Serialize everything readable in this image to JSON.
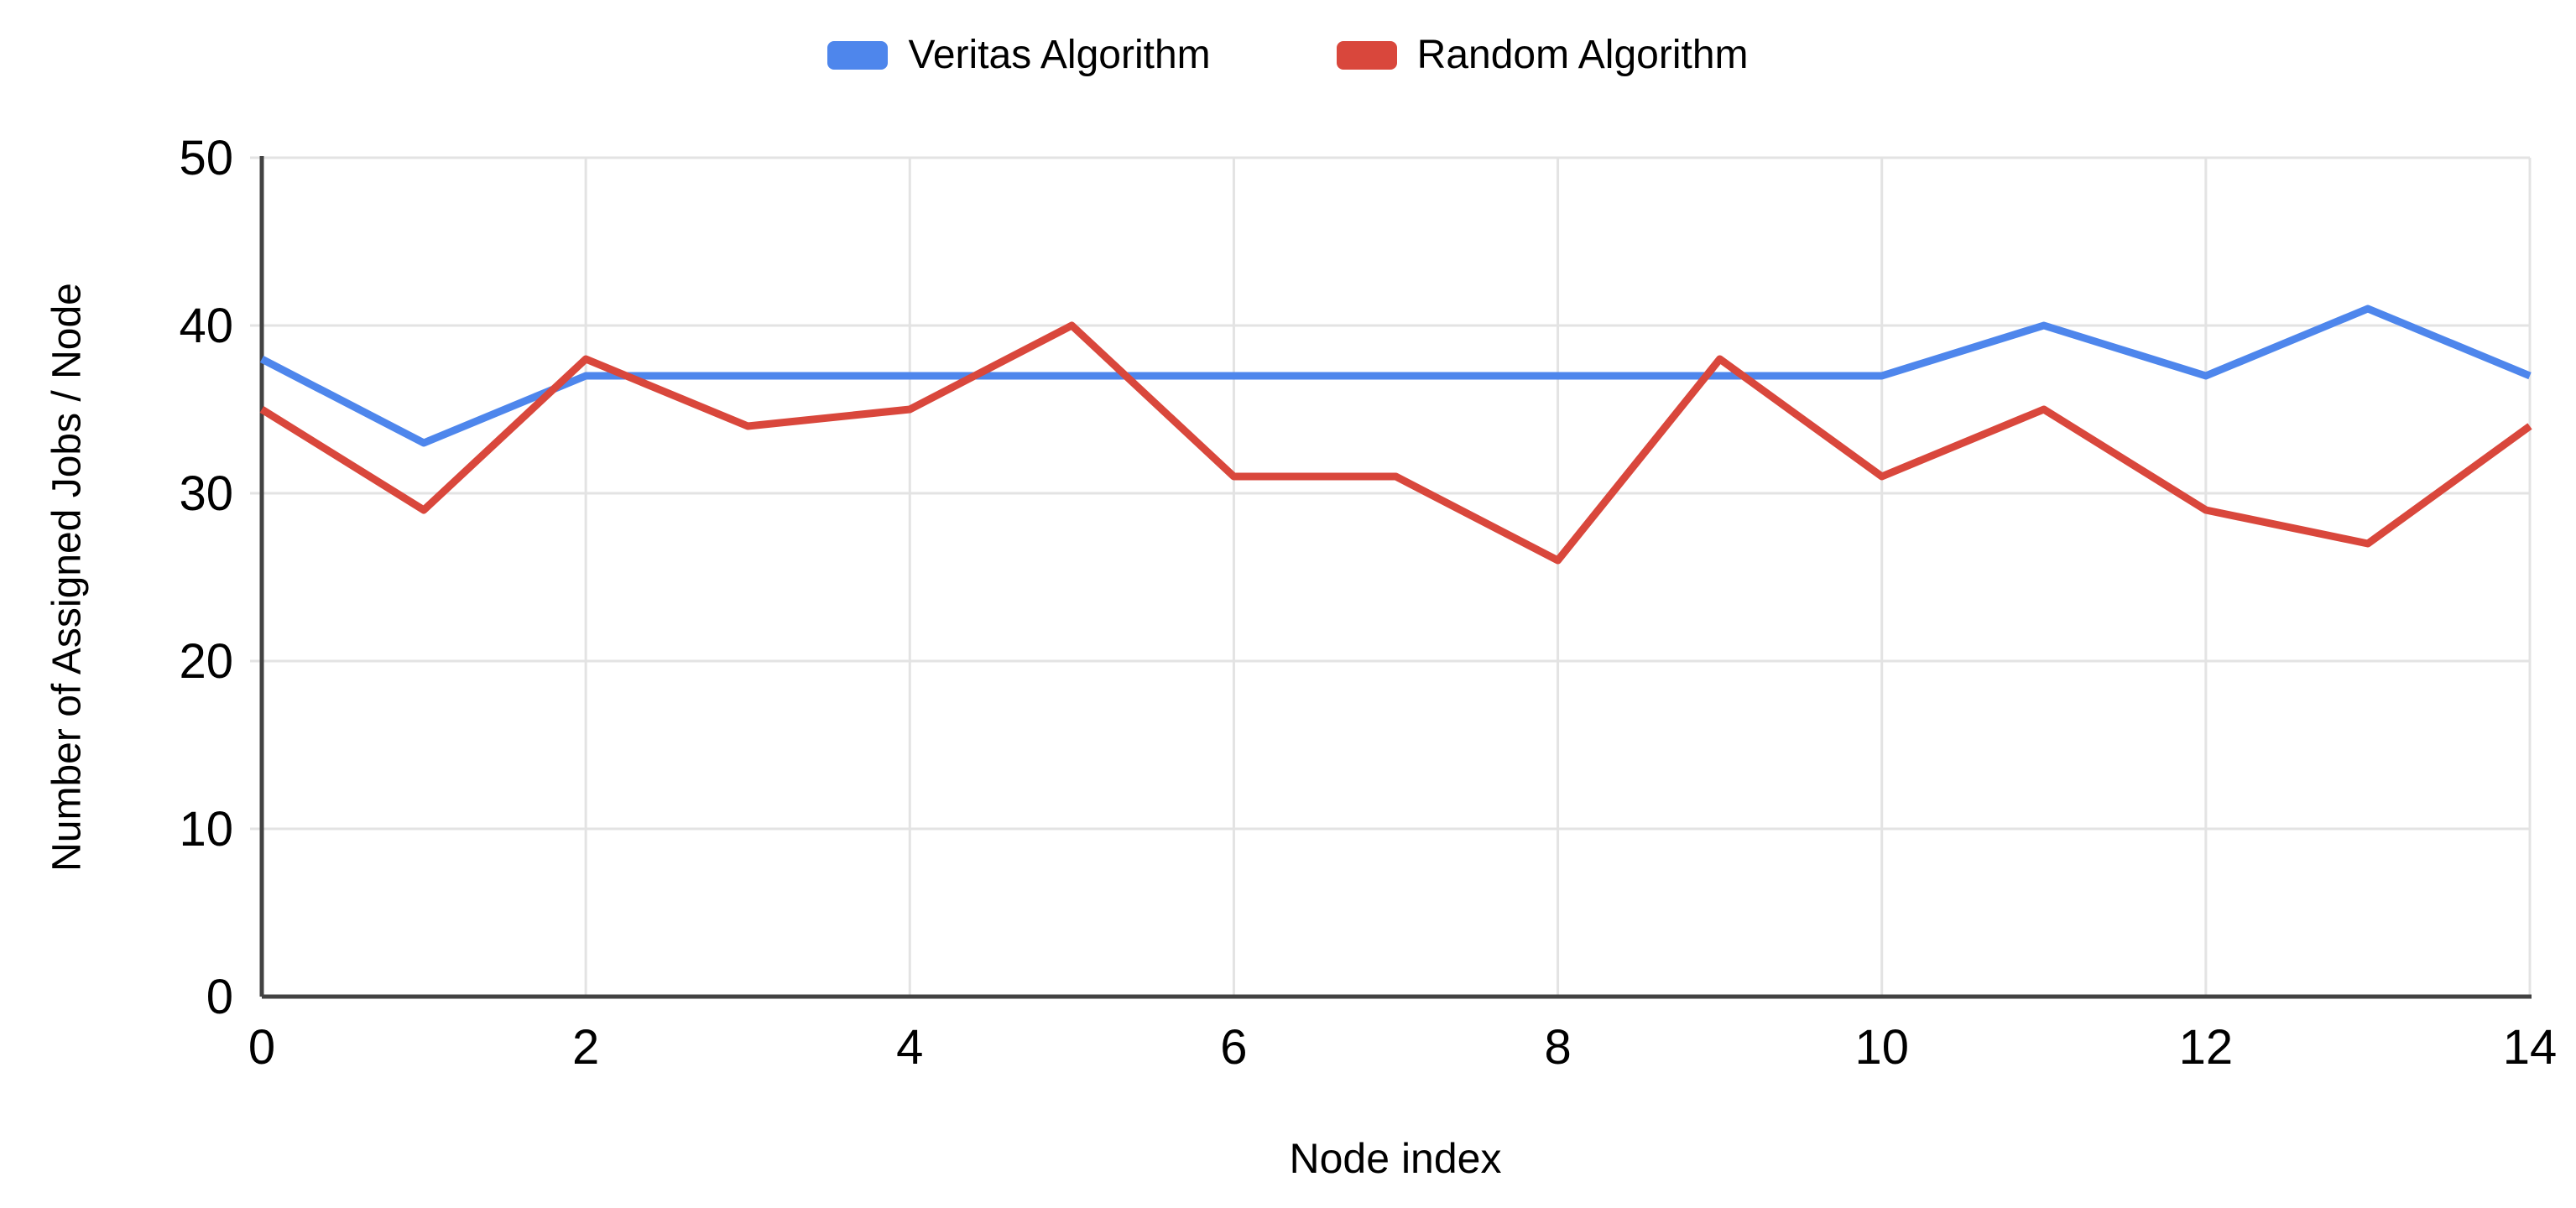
{
  "page": {
    "background": "#FFFFFF"
  },
  "colors": {
    "gridline": "#E3E3E3",
    "axis": "#424242",
    "text": "#000000"
  },
  "chart_data": {
    "type": "line",
    "title": "",
    "xlabel": "Node index",
    "ylabel": "Number of Assigned Jobs / Node",
    "x": [
      0,
      1,
      2,
      3,
      4,
      5,
      6,
      7,
      8,
      9,
      10,
      11,
      12,
      13,
      14
    ],
    "x_ticks": [
      0,
      2,
      4,
      6,
      8,
      10,
      12,
      14
    ],
    "y_ticks": [
      0,
      10,
      20,
      30,
      40,
      50
    ],
    "xlim": [
      0,
      14
    ],
    "ylim": [
      0,
      50
    ],
    "grid": true,
    "legend_position": "top",
    "series": [
      {
        "name": "Veritas Algorithm",
        "color": "#4E86EC",
        "values": [
          38,
          33,
          37,
          37,
          37,
          37,
          37,
          37,
          37,
          37,
          37,
          40,
          37,
          41,
          37
        ]
      },
      {
        "name": "Random Algorithm",
        "color": "#D9473C",
        "values": [
          35,
          29,
          38,
          34,
          35,
          40,
          31,
          31,
          26,
          38,
          31,
          35,
          29,
          27,
          34
        ]
      }
    ]
  }
}
